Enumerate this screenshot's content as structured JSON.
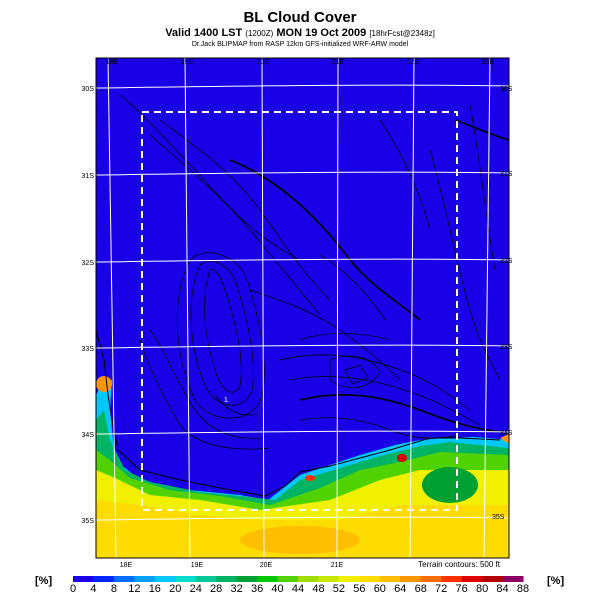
{
  "header": {
    "title": "BL Cloud Cover",
    "valid_main": "Valid 1400 LST",
    "valid_small1": "(1200Z)",
    "valid_date": "MON 19 Oct 2009",
    "valid_small2": "[18hrFcst@2348z]",
    "credit": "Dr.Jack BLIPMAP from RASP 12km GFS-initialized WRF-ARW model"
  },
  "map": {
    "terrain_note": "Terrain contours: 500 ft",
    "lon_labels_top": [
      "18E",
      "19E",
      "20E",
      "21E",
      "22E",
      "23E"
    ],
    "lon_labels_bottom": [
      "18E",
      "19E",
      "20E",
      "21E"
    ],
    "lat_labels_left": [
      "30S",
      "31S",
      "32S",
      "33S",
      "34S",
      "35S"
    ],
    "lat_labels_right": [
      "30S",
      "31S",
      "32S",
      "33S",
      "34S",
      "35S"
    ],
    "point_marker": "1"
  },
  "colorbar": {
    "unit_left": "[%]",
    "unit_right": "[%]",
    "ticks": [
      "0",
      "4",
      "8",
      "12",
      "16",
      "20",
      "24",
      "28",
      "32",
      "36",
      "40",
      "44",
      "48",
      "52",
      "56",
      "60",
      "64",
      "68",
      "72",
      "76",
      "80",
      "84",
      "88"
    ],
    "colors": [
      "#1a00e6",
      "#0027ff",
      "#006fff",
      "#00a0ff",
      "#00c8ff",
      "#00dccd",
      "#00c896",
      "#00b464",
      "#00a032",
      "#00c800",
      "#50d200",
      "#a0dc00",
      "#c8e600",
      "#f0f000",
      "#ffdc00",
      "#ffbe00",
      "#ff9600",
      "#ff6e00",
      "#ff3200",
      "#dc0000",
      "#b40000",
      "#8c0064"
    ]
  }
}
